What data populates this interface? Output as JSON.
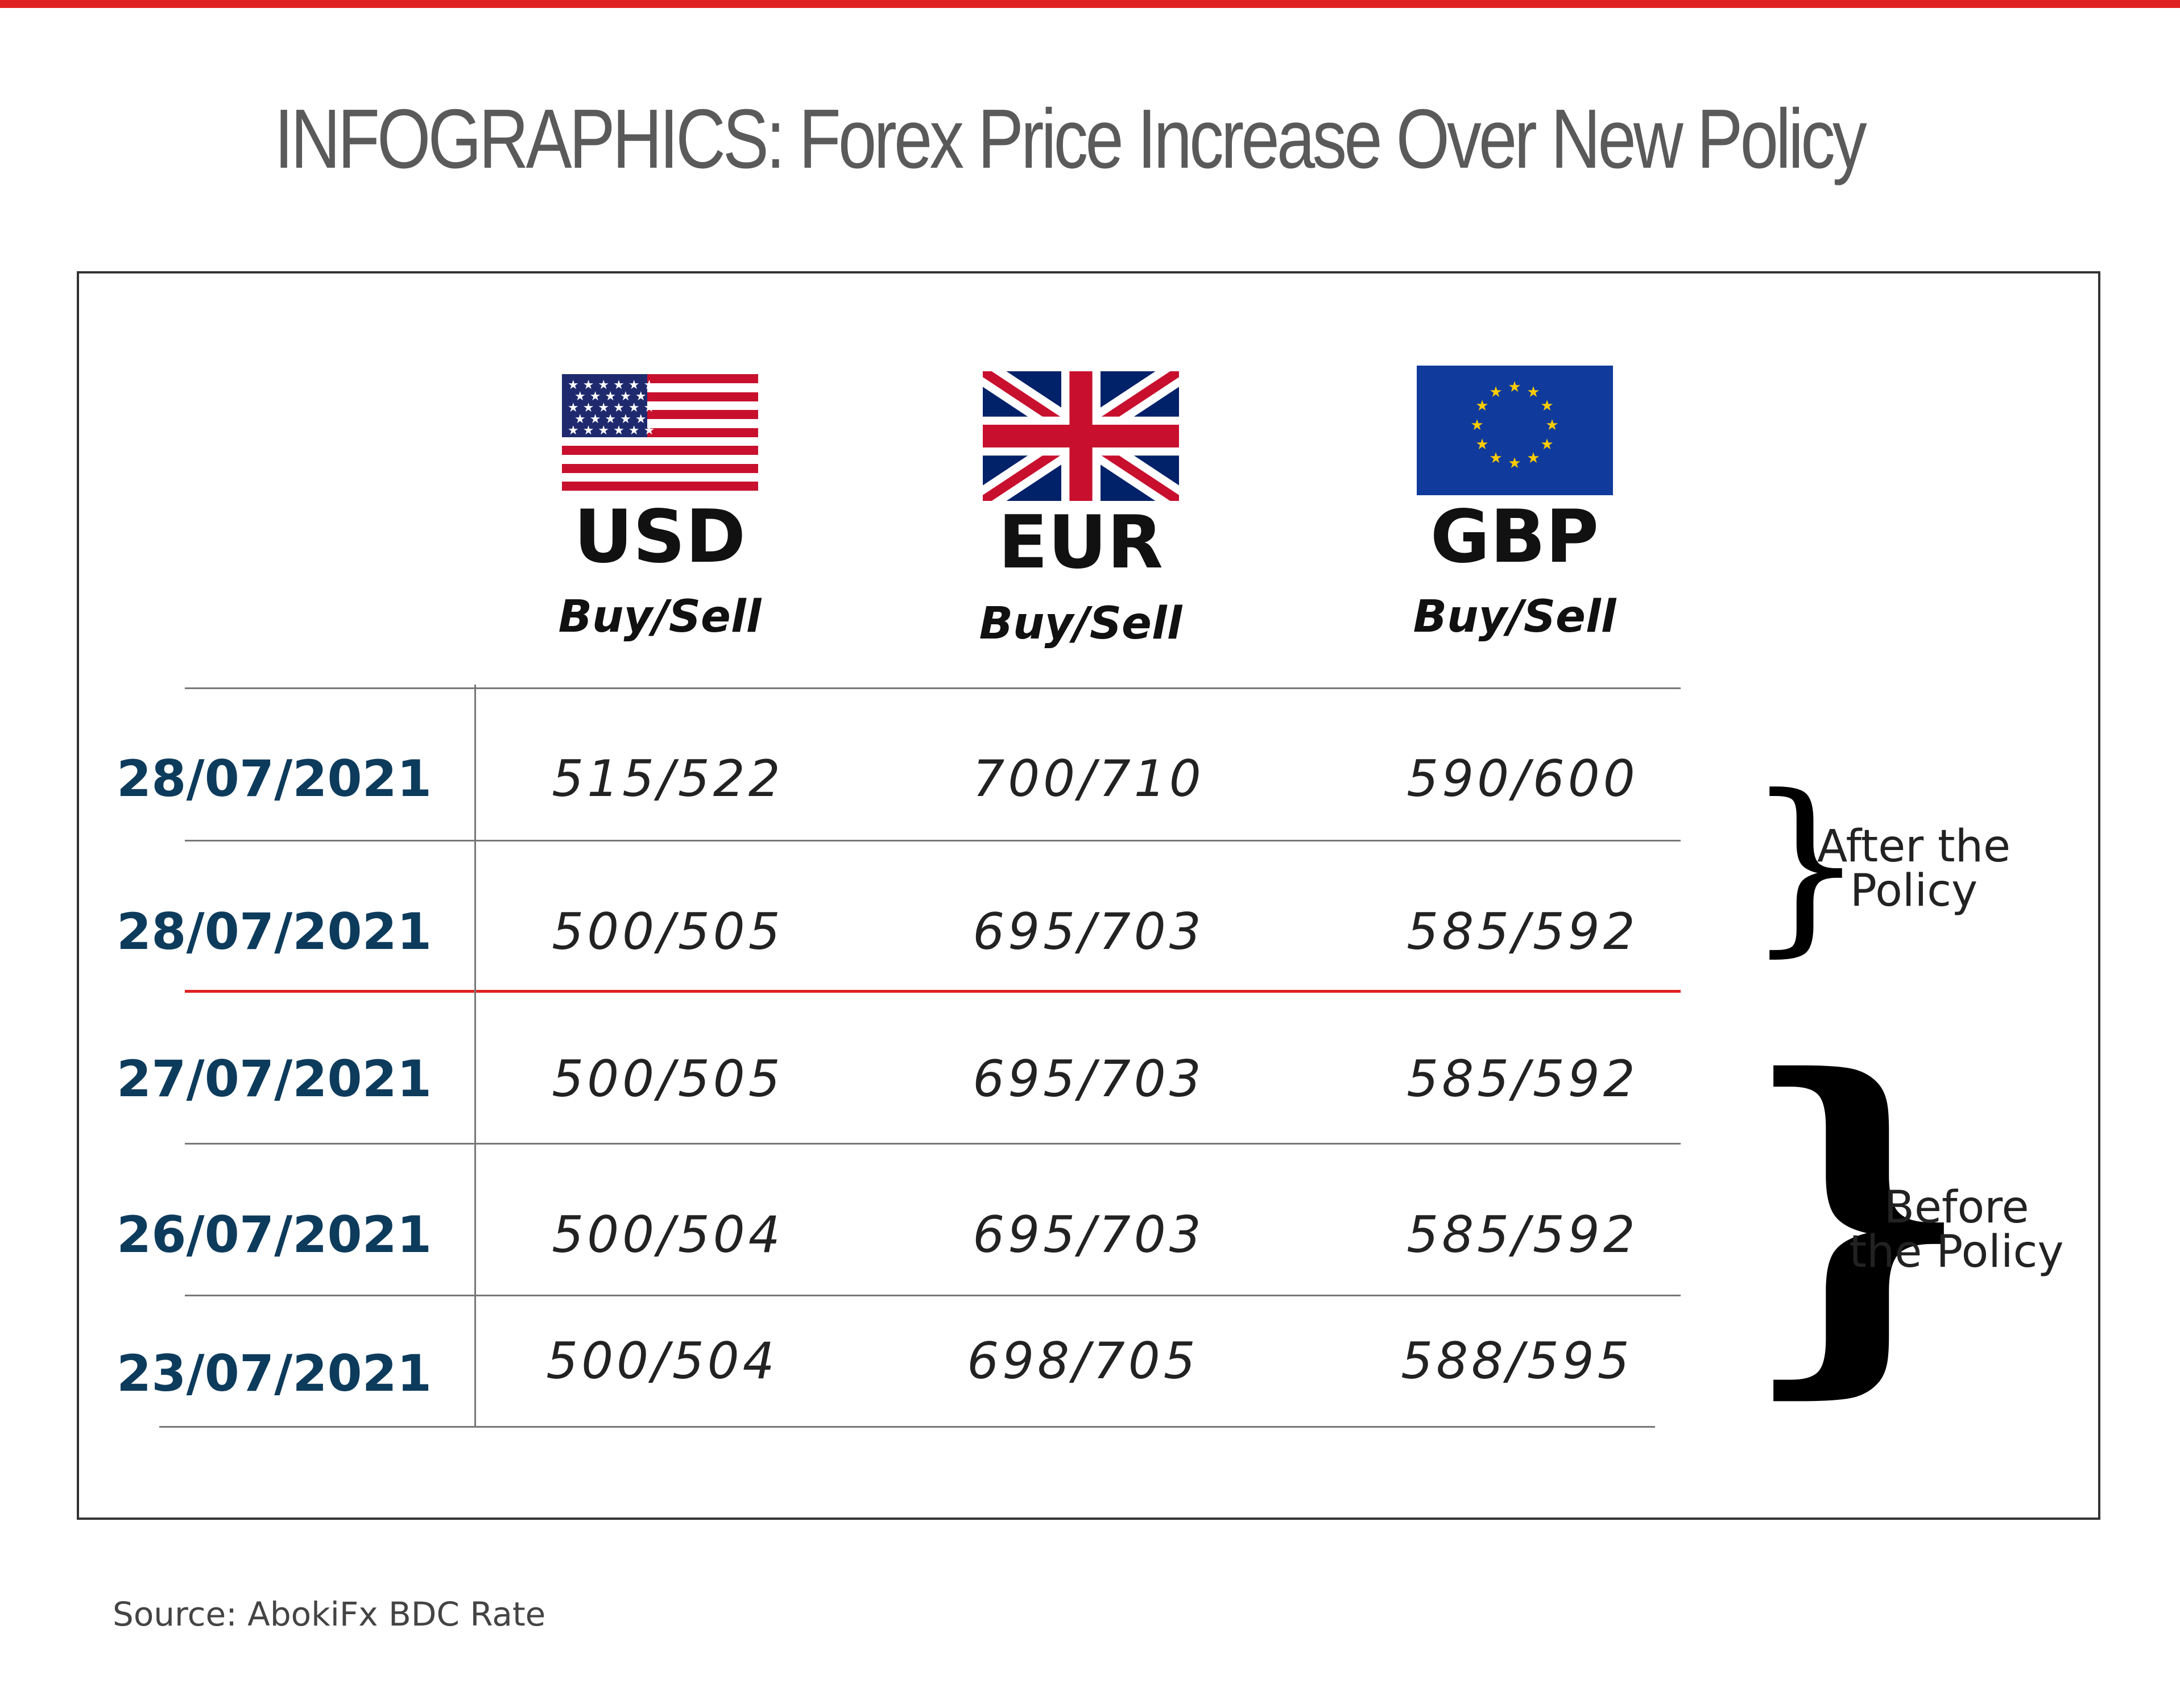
{
  "title": "INFOGRAPHICS: Forex Price Increase Over New Policy",
  "columns": [
    {
      "code": "USD",
      "sub": "Buy/Sell",
      "flag": "us-flag"
    },
    {
      "code": "EUR",
      "sub": "Buy/Sell",
      "flag": "uk-flag"
    },
    {
      "code": "GBP",
      "sub": "Buy/Sell",
      "flag": "eu-flag"
    }
  ],
  "rows": [
    {
      "date": "28/07/2021",
      "usd": "515/522",
      "eur": "700/710",
      "gbp": "590/600"
    },
    {
      "date": "28/07/2021",
      "usd": "500/505",
      "eur": "695/703",
      "gbp": "585/592"
    },
    {
      "date": "27/07/2021",
      "usd": "500/505",
      "eur": "695/703",
      "gbp": "585/592"
    },
    {
      "date": "26/07/2021",
      "usd": "500/504",
      "eur": "695/703",
      "gbp": "585/592"
    },
    {
      "date": "23/07/2021",
      "usd": "500/504",
      "eur": "698/705",
      "gbp": "588/595"
    }
  ],
  "notes": {
    "after": {
      "line1": "After the",
      "line2": "Policy"
    },
    "before": {
      "line1": "Before",
      "line2": "the Policy"
    }
  },
  "source": "Source: AbokiFx BDC Rate",
  "colors": {
    "accent": "#e02020",
    "date": "#0d3b5c",
    "title": "#5a5a5a"
  }
}
